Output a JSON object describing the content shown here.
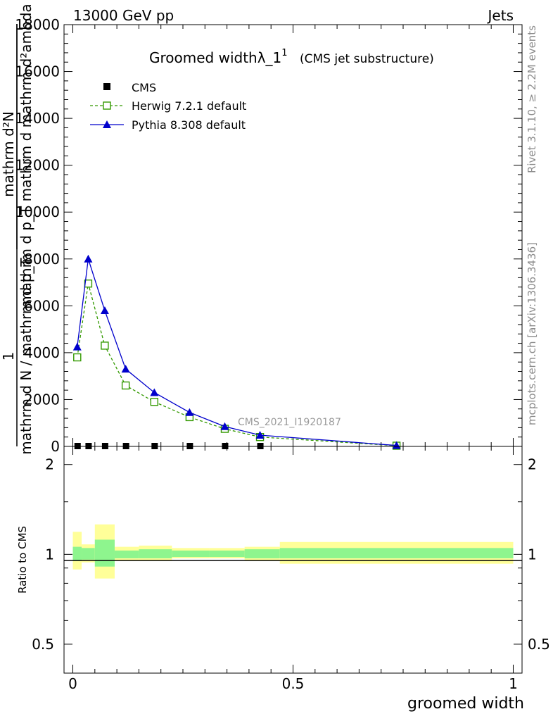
{
  "header": {
    "energy_label": "13000 GeV pp",
    "process_label": "Jets"
  },
  "side_labels": {
    "rivet": "Rivet 3.1.10, ≥ 2.2M events",
    "mcplots": "mcplots.cern.ch [arXiv:1306.3436]"
  },
  "chart_data": [
    {
      "type": "line",
      "title": "Groomed widthλ_1",
      "title_superscript": "1",
      "subtitle": "(CMS jet substructure)",
      "analysis_tag": "CMS_2021_I1920187",
      "ylabel_numerator": "mathrm d²N",
      "ylabel_denominator": "mathrm d p_T mathrm d mathrm d²ambda",
      "ylabel_prefix_num": "1",
      "ylabel_prefix_den": "mathrm d N / mathrm d p_T",
      "ylim": [
        0,
        18000
      ],
      "yticks": [
        0,
        2000,
        4000,
        6000,
        8000,
        10000,
        12000,
        14000,
        16000,
        18000
      ],
      "ytick_labels": [
        "0",
        "2000",
        "4000",
        "6000",
        "8000",
        "10000",
        "12000",
        "14000",
        "16000",
        "18000"
      ],
      "xlim": [
        -0.02,
        1.02
      ],
      "legend": [
        "CMS",
        "Herwig 7.2.1 default",
        "Pythia 8.308 default"
      ],
      "series": [
        {
          "name": "CMS",
          "marker": "square",
          "color": "#000000",
          "x": [
            0.01,
            0.035,
            0.0725,
            0.12,
            0.185,
            0.265,
            0.345,
            0.425,
            0.735
          ],
          "values": [
            0,
            0,
            0,
            0,
            0,
            0,
            0,
            0,
            0
          ]
        },
        {
          "name": "Herwig 7.2.1 default",
          "marker": "open-square",
          "color": "#339900",
          "x": [
            0.01,
            0.035,
            0.0725,
            0.12,
            0.185,
            0.265,
            0.345,
            0.425,
            0.735
          ],
          "values": [
            3800,
            6950,
            4300,
            2600,
            1900,
            1250,
            750,
            400,
            30
          ]
        },
        {
          "name": "Pythia 8.308 default",
          "marker": "triangle",
          "color": "#0000cc",
          "x": [
            0.01,
            0.035,
            0.0725,
            0.12,
            0.185,
            0.265,
            0.345,
            0.425,
            0.735
          ],
          "values": [
            4250,
            8000,
            5800,
            3300,
            2300,
            1450,
            850,
            480,
            40
          ]
        }
      ]
    },
    {
      "type": "area",
      "ylabel": "Ratio to CMS",
      "xlabel": "groomed width",
      "ylim": [
        0.4,
        2.3
      ],
      "log_y": true,
      "yticks": [
        0.5,
        1,
        2
      ],
      "ytick_labels": [
        "0.5",
        "1",
        "2"
      ],
      "xlim": [
        -0.02,
        1.02
      ],
      "xticks": [
        0,
        0.5,
        1
      ],
      "xtick_labels": [
        "0",
        "0.5",
        "1"
      ],
      "band_colors": {
        "inner": "#8ef58e",
        "outer": "#ffff99"
      },
      "bins": [
        {
          "lo": 0.0,
          "hi": 0.02,
          "inner": [
            0.95,
            1.06
          ],
          "outer": [
            0.89,
            1.19
          ]
        },
        {
          "lo": 0.02,
          "hi": 0.05,
          "inner": [
            0.96,
            1.05
          ],
          "outer": [
            0.94,
            1.08
          ]
        },
        {
          "lo": 0.05,
          "hi": 0.095,
          "inner": [
            0.91,
            1.12
          ],
          "outer": [
            0.83,
            1.26
          ]
        },
        {
          "lo": 0.095,
          "hi": 0.15,
          "inner": [
            0.97,
            1.03
          ],
          "outer": [
            0.95,
            1.06
          ]
        },
        {
          "lo": 0.15,
          "hi": 0.225,
          "inner": [
            0.97,
            1.04
          ],
          "outer": [
            0.95,
            1.07
          ]
        },
        {
          "lo": 0.225,
          "hi": 0.31,
          "inner": [
            0.98,
            1.03
          ],
          "outer": [
            0.97,
            1.05
          ]
        },
        {
          "lo": 0.31,
          "hi": 0.39,
          "inner": [
            0.98,
            1.03
          ],
          "outer": [
            0.97,
            1.05
          ]
        },
        {
          "lo": 0.39,
          "hi": 0.47,
          "inner": [
            0.97,
            1.04
          ],
          "outer": [
            0.95,
            1.06
          ]
        },
        {
          "lo": 0.47,
          "hi": 1.0,
          "inner": [
            0.97,
            1.05
          ],
          "outer": [
            0.93,
            1.1
          ]
        }
      ]
    }
  ]
}
